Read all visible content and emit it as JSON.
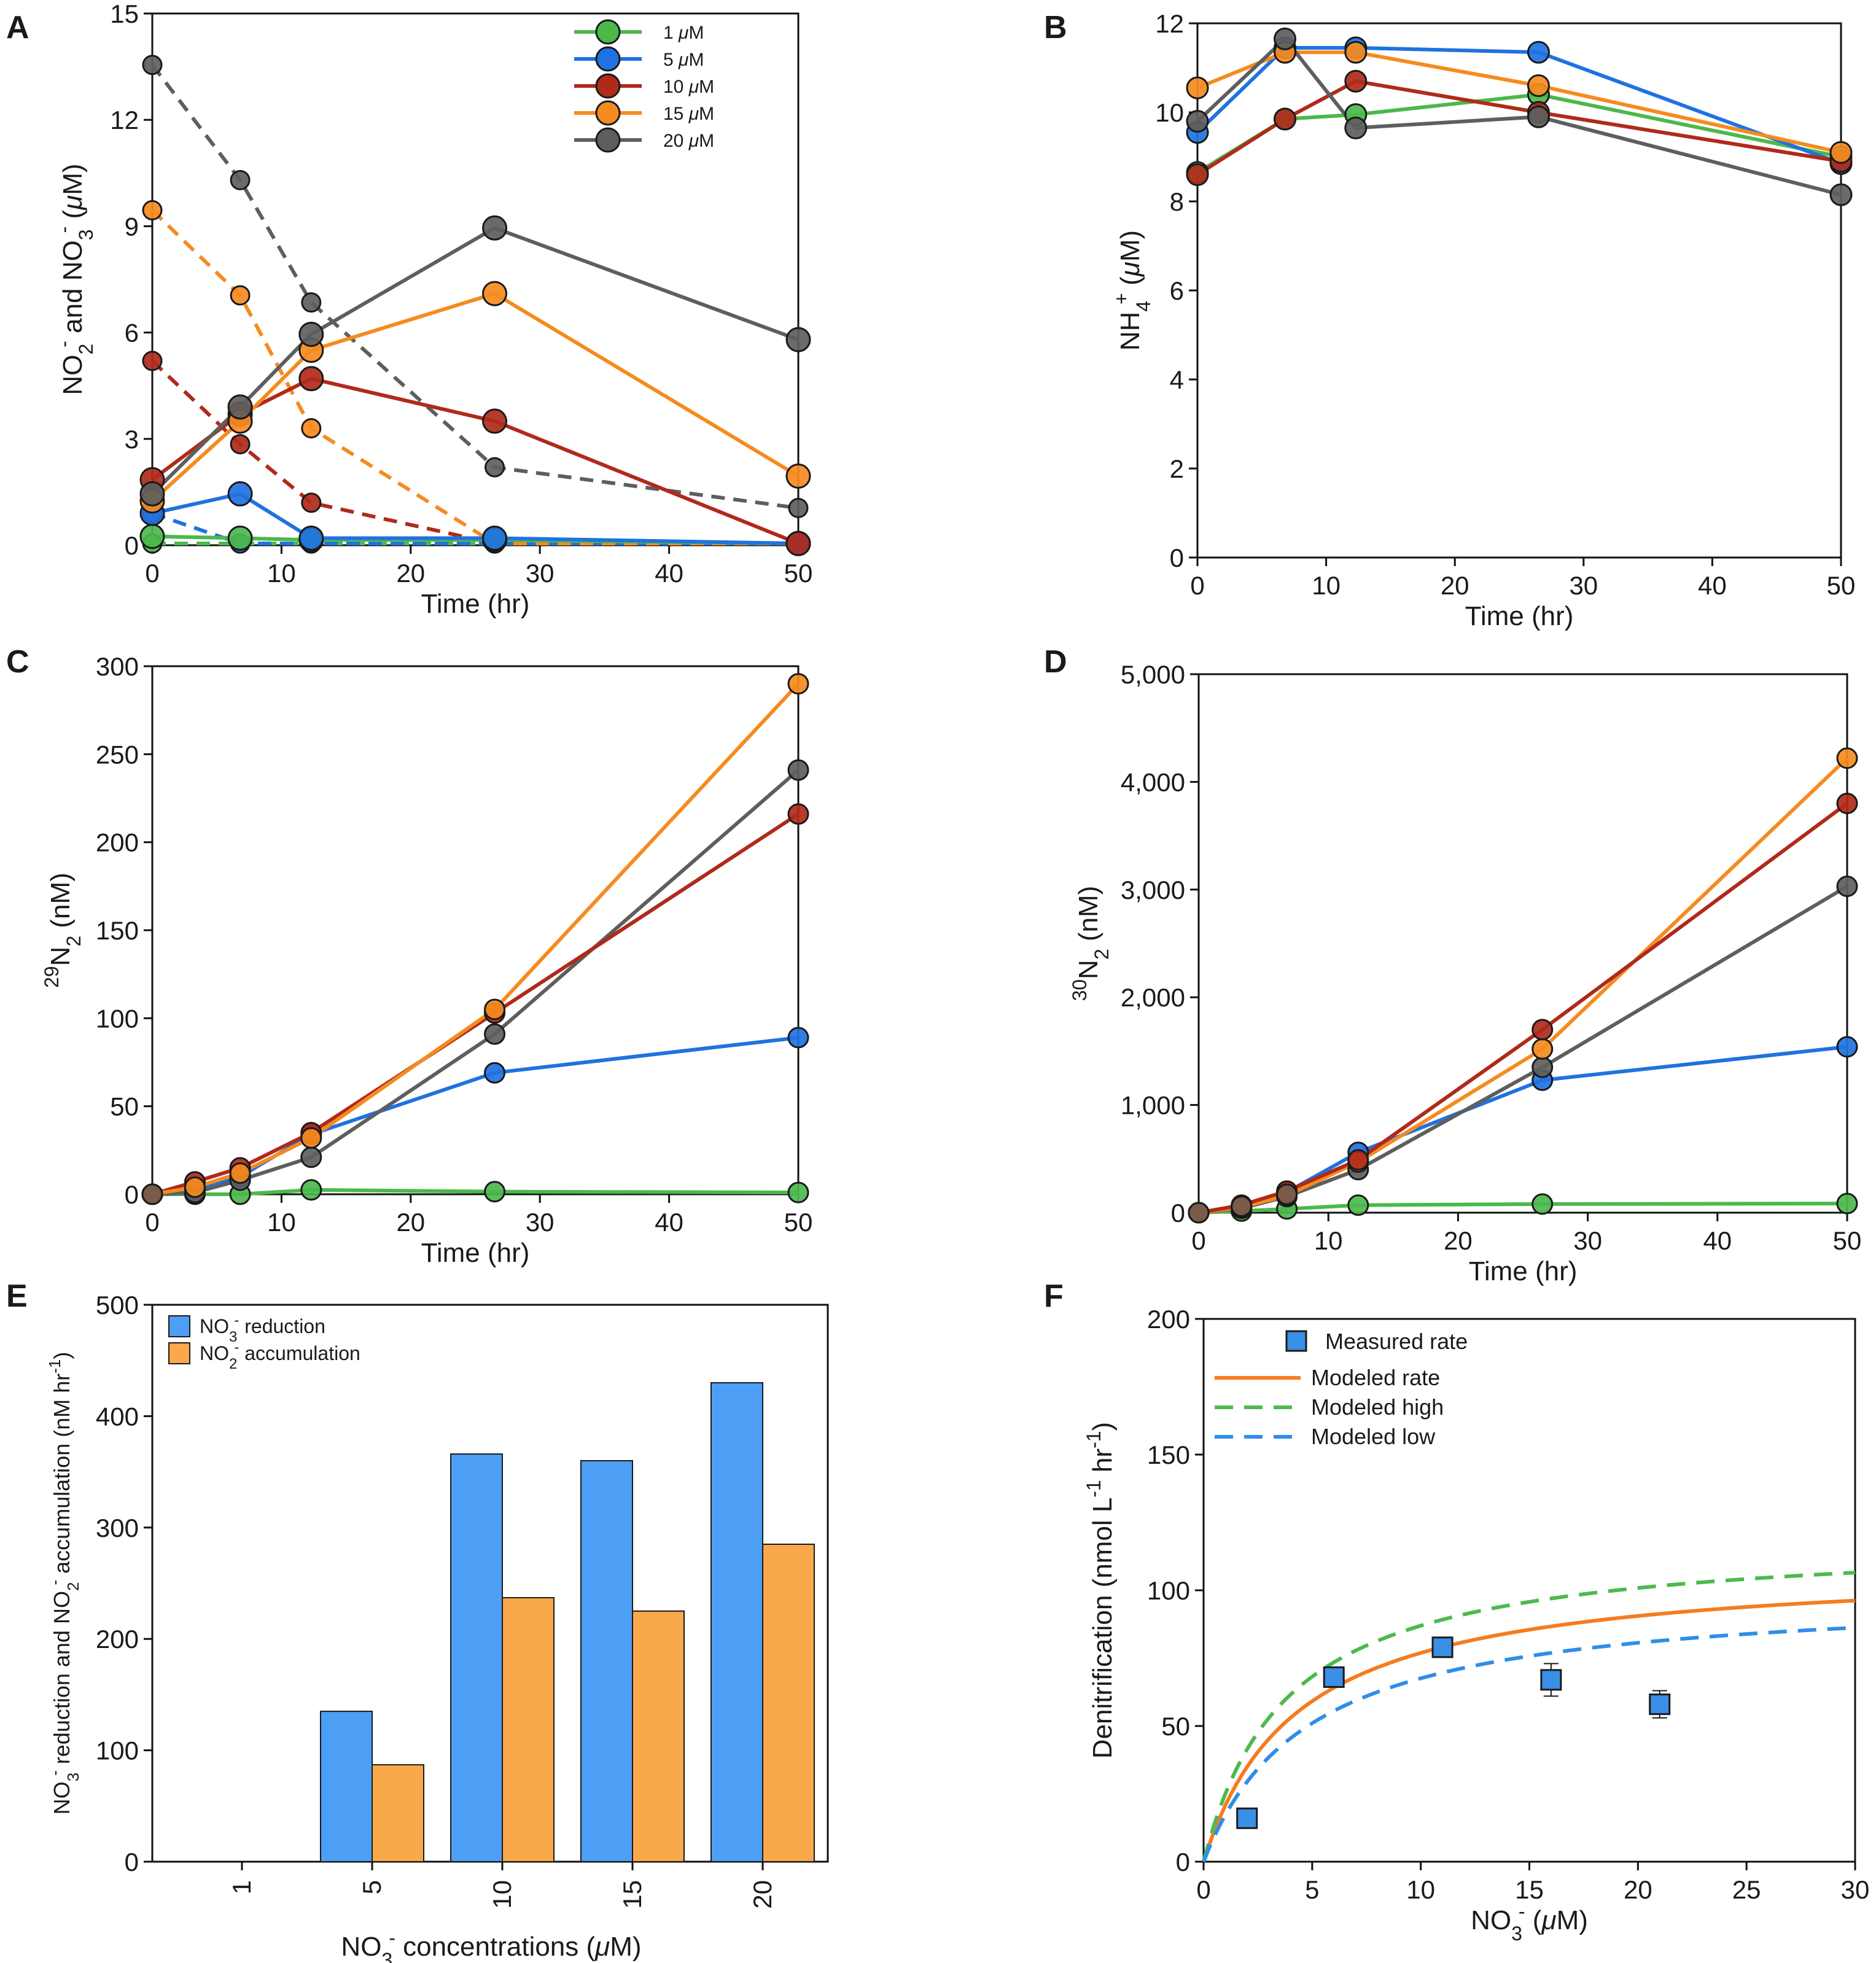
{
  "figure": {
    "colors": {
      "c1": "#4cb84c",
      "c5": "#1f72e0",
      "c10": "#b02a1a",
      "c15": "#f58b1f",
      "c20": "#5e5e5e",
      "brown": "#7a5a48",
      "bar_blue": "#4d9ef5",
      "bar_orange": "#f9a84a",
      "square_blue": "#3a8fe6",
      "modeled_rate": "#f57c1f",
      "modeled_high": "#4cba4c",
      "modeled_low": "#2f8ee8"
    }
  },
  "chart_data": [
    {
      "panel": "A",
      "type": "line",
      "xlabel": "Time (hr)",
      "ylabel": "NO2- and NO3- (μM)",
      "ylabel_parts": {
        "a": "NO",
        "a_sub": "2",
        "a_sup": "-",
        "b": " and NO",
        "b_sub": "3",
        "b_sup": "-",
        "c": " (",
        "mu": "μ",
        "d": "M)"
      },
      "xlim": [
        0,
        50
      ],
      "ylim": [
        0,
        15
      ],
      "xticks": [
        0,
        10,
        20,
        30,
        40,
        50
      ],
      "yticks": [
        0,
        3,
        6,
        9,
        12,
        15
      ],
      "x": [
        0,
        6.8,
        12.3,
        26.5,
        50
      ],
      "legend": [
        {
          "name": "1 μM",
          "num": "1 ",
          "mu": "μ",
          "unit": "M",
          "color_key": "c1"
        },
        {
          "name": "5 μM",
          "num": "5 ",
          "mu": "μ",
          "unit": "M",
          "color_key": "c5"
        },
        {
          "name": "10 μM",
          "num": "10 ",
          "mu": "μ",
          "unit": "M",
          "color_key": "c10"
        },
        {
          "name": "15 μM",
          "num": "15 ",
          "mu": "μ",
          "unit": "M",
          "color_key": "c15"
        },
        {
          "name": "20 μM",
          "num": "20 ",
          "mu": "μ",
          "unit": "M",
          "color_key": "c20"
        }
      ],
      "series": [
        {
          "name": "1 μM NO3-",
          "color_key": "c1",
          "dashed": true,
          "values": [
            0.05,
            0.05,
            0.05,
            0.05,
            0.05
          ]
        },
        {
          "name": "5 μM NO3-",
          "color_key": "c5",
          "dashed": true,
          "values": [
            0.9,
            0.05,
            0.05,
            0.05,
            0.05
          ]
        },
        {
          "name": "10 μM NO3-",
          "color_key": "c10",
          "dashed": true,
          "values": [
            5.2,
            2.85,
            1.2,
            0.05,
            0.05
          ]
        },
        {
          "name": "15 μM NO3-",
          "color_key": "c15",
          "dashed": true,
          "values": [
            9.45,
            7.05,
            3.3,
            0.05,
            0.05
          ]
        },
        {
          "name": "20 μM NO3-",
          "color_key": "c20",
          "dashed": true,
          "values": [
            13.55,
            10.3,
            6.85,
            2.2,
            1.05
          ]
        },
        {
          "name": "1 μM NO2-",
          "color_key": "c1",
          "dashed": false,
          "values": [
            0.25,
            0.2,
            0.15,
            0.15,
            0.05
          ]
        },
        {
          "name": "5 μM NO2-",
          "color_key": "c5",
          "dashed": false,
          "values": [
            0.9,
            1.45,
            0.2,
            0.2,
            0.05
          ]
        },
        {
          "name": "10 μM NO2-",
          "color_key": "c10",
          "dashed": false,
          "values": [
            1.85,
            3.7,
            4.7,
            3.5,
            0.05
          ]
        },
        {
          "name": "15 μM NO2-",
          "color_key": "c15",
          "dashed": false,
          "values": [
            1.25,
            3.5,
            5.5,
            7.1,
            1.95
          ]
        },
        {
          "name": "20 μM NO2-",
          "color_key": "c20",
          "dashed": false,
          "values": [
            1.45,
            3.9,
            5.95,
            8.95,
            5.8
          ]
        }
      ]
    },
    {
      "panel": "B",
      "type": "line",
      "xlabel": "Time (hr)",
      "ylabel": "NH4+ (μM)",
      "ylabel_parts": {
        "a": "NH",
        "a_sub": "4",
        "a_sup": "+",
        "c": " (",
        "mu": "μ",
        "d": "M)"
      },
      "xlim": [
        0,
        50
      ],
      "ylim": [
        0,
        12
      ],
      "xticks": [
        0,
        10,
        20,
        30,
        40,
        50
      ],
      "yticks": [
        0,
        2,
        4,
        6,
        8,
        10,
        12
      ],
      "x": [
        0,
        6.8,
        12.3,
        26.5,
        50
      ],
      "series": [
        {
          "name": "1 μM",
          "color_key": "c1",
          "values": [
            8.65,
            9.85,
            9.95,
            10.4,
            9.0
          ]
        },
        {
          "name": "5 μM",
          "color_key": "c5",
          "values": [
            9.55,
            11.45,
            11.45,
            11.35,
            8.85
          ]
        },
        {
          "name": "10 μM",
          "color_key": "c10",
          "values": [
            8.6,
            9.85,
            10.7,
            10.0,
            8.9
          ]
        },
        {
          "name": "15 μM",
          "color_key": "c15",
          "values": [
            10.55,
            11.35,
            11.35,
            10.6,
            9.1
          ]
        },
        {
          "name": "20 μM",
          "color_key": "c20",
          "values": [
            9.8,
            11.65,
            9.65,
            9.9,
            8.15
          ]
        }
      ]
    },
    {
      "panel": "C",
      "type": "line",
      "xlabel": "Time (hr)",
      "ylabel": "29N2 (nM)",
      "ylabel_parts": {
        "pre_sup": "29",
        "a": "N",
        "a_sub": "2",
        "d": " (nM)"
      },
      "xlim": [
        0,
        50
      ],
      "ylim": [
        0,
        300
      ],
      "xticks": [
        0,
        10,
        20,
        30,
        40,
        50
      ],
      "yticks": [
        0,
        50,
        100,
        150,
        200,
        250,
        300
      ],
      "x": [
        0,
        3.3,
        6.8,
        12.3,
        26.5,
        50
      ],
      "series": [
        {
          "name": "1 μM",
          "color_key": "c1",
          "values": [
            0,
            0,
            0,
            2.5,
            1.5,
            1
          ]
        },
        {
          "name": "5 μM",
          "color_key": "c5",
          "values": [
            0,
            3,
            10,
            34,
            69,
            89
          ]
        },
        {
          "name": "20 μM",
          "color_key": "c20",
          "values": [
            0,
            1,
            8,
            21,
            91,
            241
          ]
        },
        {
          "name": "10 μM",
          "color_key": "c10",
          "values": [
            0,
            7,
            15,
            35,
            103,
            216
          ]
        },
        {
          "name": "15 μM",
          "color_key": "c15",
          "values": [
            0,
            4,
            12,
            32,
            105,
            290
          ]
        }
      ]
    },
    {
      "panel": "D",
      "type": "line",
      "xlabel": "Time (hr)",
      "ylabel": "30N2 (nM)",
      "ylabel_parts": {
        "pre_sup": "30",
        "a": "N",
        "a_sub": "2",
        "d": " (nM)"
      },
      "xlim": [
        0,
        50
      ],
      "ylim": [
        0,
        5000
      ],
      "xticks": [
        0,
        10,
        20,
        30,
        40,
        50
      ],
      "yticks": [
        0,
        1000,
        2000,
        3000,
        4000,
        5000
      ],
      "ytick_labels": [
        "0",
        "1,000",
        "2,000",
        "3,000",
        "4,000",
        "5,000"
      ],
      "x": [
        0,
        3.3,
        6.8,
        12.3,
        26.5,
        50
      ],
      "series": [
        {
          "name": "1 μM",
          "color_key": "c1",
          "values": [
            0,
            15,
            35,
            70,
            80,
            85
          ]
        },
        {
          "name": "5 μM",
          "color_key": "c5",
          "values": [
            0,
            60,
            190,
            560,
            1230,
            1540
          ]
        },
        {
          "name": "20 μM",
          "color_key": "c20",
          "values": [
            0,
            40,
            150,
            400,
            1350,
            3030
          ]
        },
        {
          "name": "15 μM",
          "color_key": "c15",
          "values": [
            0,
            50,
            160,
            470,
            1520,
            4220
          ]
        },
        {
          "name": "10 μM",
          "color_key": "c10",
          "values": [
            0,
            70,
            200,
            490,
            1700,
            3800
          ]
        }
      ],
      "origin_color_key": "brown"
    },
    {
      "panel": "E",
      "type": "bar",
      "xlabel": "NO3- concentrations (μM)",
      "xlabel_parts": {
        "a": "NO",
        "a_sub": "3",
        "a_sup": "-",
        "c": " concentrations (",
        "mu": "μ",
        "d": "M)"
      },
      "ylabel": "NO3- reduction and NO2- accumulation (nM hr-1)",
      "ylabel_parts": {
        "a": "NO",
        "a_sub": "3",
        "a_sup": "-",
        "b": " reduction and NO",
        "b_sub": "2",
        "b_sup": "-",
        "c": " accumulation (nM hr",
        "c_sup": "-1",
        "d": ")"
      },
      "ylim": [
        0,
        500
      ],
      "yticks": [
        0,
        100,
        200,
        300,
        400,
        500
      ],
      "categories": [
        "1",
        "5",
        "10",
        "15",
        "20"
      ],
      "legend": [
        {
          "name": "NO3- reduction",
          "a": "NO",
          "sub": "3",
          "sup": "-",
          "b": " reduction",
          "color_key": "bar_blue"
        },
        {
          "name": "NO2- accumulation",
          "a": "NO",
          "sub": "2",
          "sup": "-",
          "b": " accumulation",
          "color_key": "bar_orange"
        }
      ],
      "series": [
        {
          "name": "NO3- reduction",
          "color_key": "bar_blue",
          "values": [
            0,
            135,
            366,
            360,
            430
          ]
        },
        {
          "name": "NO2- accumulation",
          "color_key": "bar_orange",
          "values": [
            0,
            87,
            237,
            225,
            285
          ]
        }
      ]
    },
    {
      "panel": "F",
      "type": "scatter",
      "xlabel": "NO3- (μM)",
      "xlabel_parts": {
        "a": "NO",
        "a_sub": "3",
        "a_sup": "-",
        "c": " (",
        "mu": "μ",
        "d": "M)"
      },
      "ylabel": "Denitrification (nmol L-1 hr-1)",
      "ylabel_parts": {
        "a": "Denitrification (nmol L",
        "a_sup": "-1",
        "b": " hr",
        "b_sup": "-1",
        "d": ")"
      },
      "xlim": [
        0,
        30
      ],
      "ylim": [
        0,
        200
      ],
      "xticks": [
        0,
        5,
        10,
        15,
        20,
        25,
        30
      ],
      "yticks": [
        0,
        50,
        100,
        150,
        200
      ],
      "measured": {
        "name": "Measured rate",
        "color_key": "square_blue",
        "x": [
          2,
          6,
          11,
          16,
          21
        ],
        "y": [
          16,
          68,
          79,
          67,
          58
        ],
        "err": [
          2,
          2,
          2,
          6,
          5
        ]
      },
      "models": [
        {
          "name": "Modeled rate",
          "color_key": "modeled_rate",
          "dashed": false,
          "vmax": 110,
          "km": 4.3
        },
        {
          "name": "Modeled high",
          "color_key": "modeled_high",
          "dashed": true,
          "vmax": 120,
          "km": 3.8
        },
        {
          "name": "Modeled low",
          "color_key": "modeled_low",
          "dashed": true,
          "vmax": 100,
          "km": 4.8
        }
      ]
    }
  ]
}
